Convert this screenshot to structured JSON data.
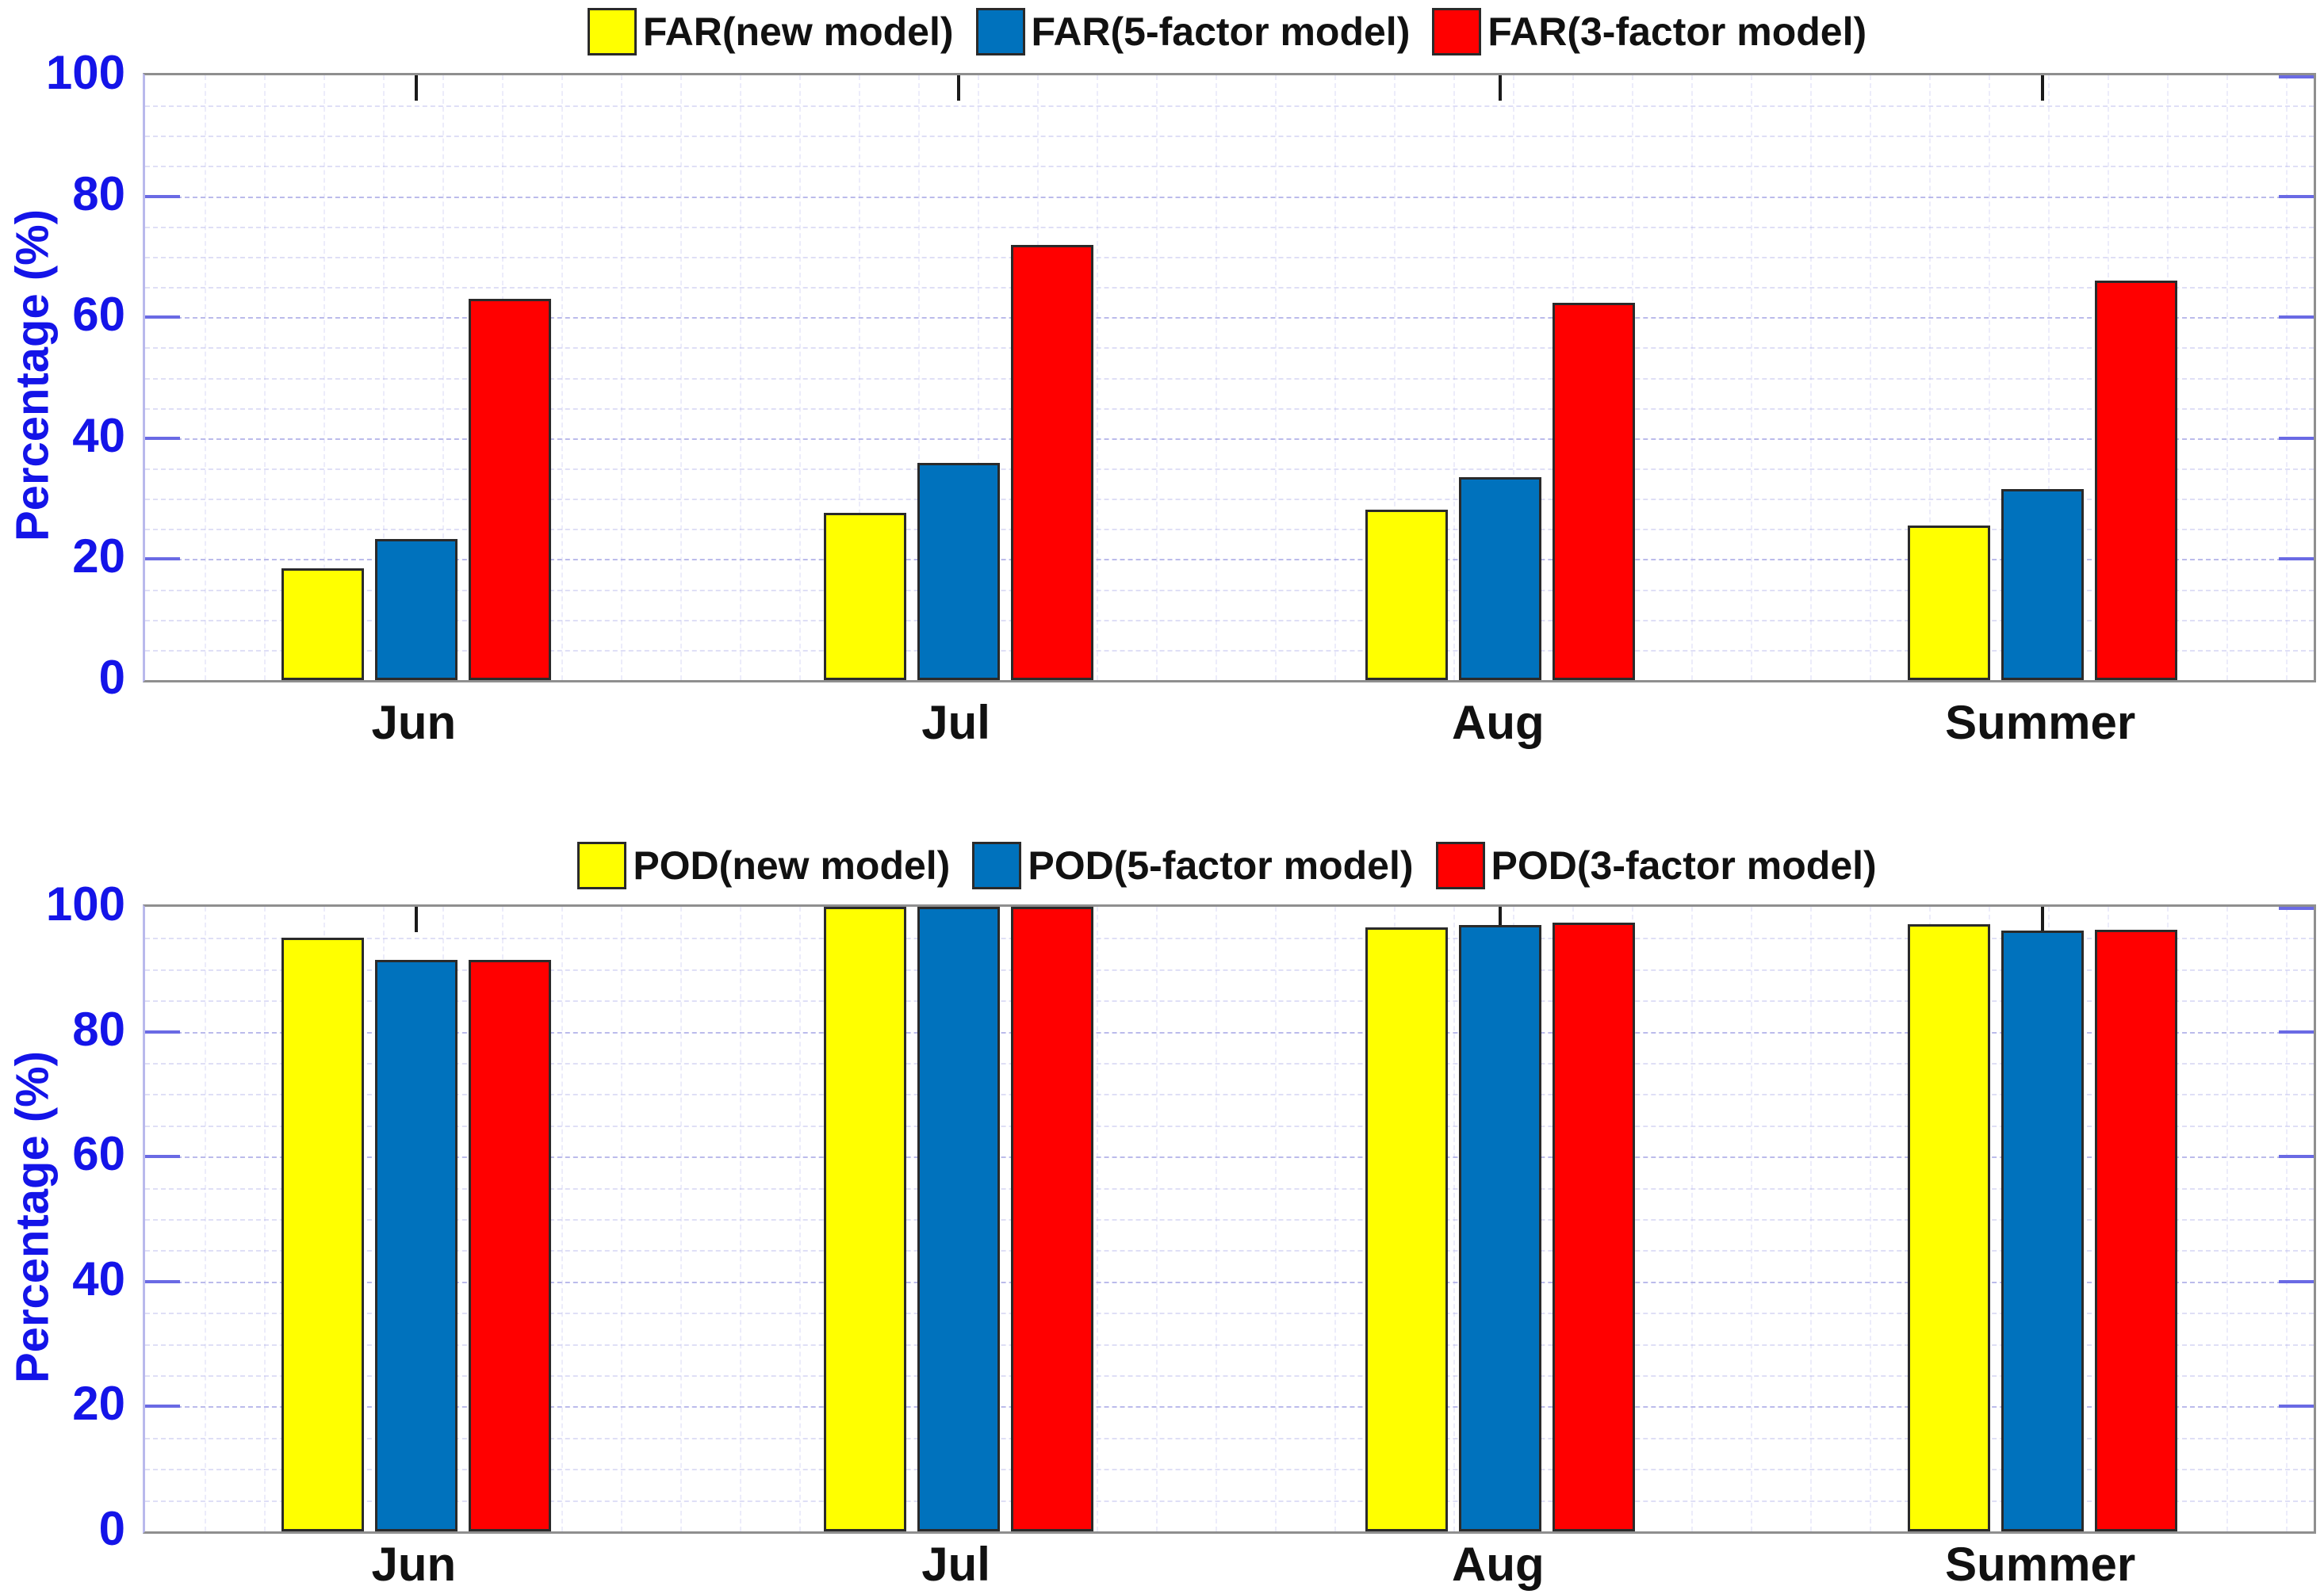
{
  "style": {
    "background": "#ffffff",
    "axis_text_color": "#1414e8",
    "category_text_color": "#111111",
    "legend_text_color": "#111111",
    "frame_color": "#8f8f8f",
    "grid_color": "#9e9ee4",
    "bar_edge_color": "#2a2a2a"
  },
  "chart_data": [
    {
      "type": "bar",
      "title": "",
      "ylabel": "Percentage (%)",
      "xlabel": "",
      "ylim": [
        0,
        100
      ],
      "yticks": [
        0,
        20,
        40,
        60,
        80,
        100
      ],
      "grid": true,
      "legend_position": "top-center",
      "categories": [
        "Jun",
        "Jul",
        "Aug",
        "Summer"
      ],
      "series": [
        {
          "name": "FAR(new model)",
          "color": "#FFFF00",
          "values": [
            18.5,
            27.6,
            28.2,
            25.6
          ]
        },
        {
          "name": "FAR(5-factor model)",
          "color": "#0072BD",
          "values": [
            23.3,
            35.9,
            33.6,
            31.6
          ]
        },
        {
          "name": "FAR(3-factor model)",
          "color": "#FF0000",
          "values": [
            63.0,
            72.0,
            62.4,
            66.0
          ]
        }
      ]
    },
    {
      "type": "bar",
      "title": "",
      "ylabel": "Percentage (%)",
      "xlabel": "",
      "ylim": [
        0,
        100
      ],
      "yticks": [
        0,
        20,
        40,
        60,
        80,
        100
      ],
      "grid": true,
      "legend_position": "top-center",
      "categories": [
        "Jun",
        "Jul",
        "Aug",
        "Summer"
      ],
      "series": [
        {
          "name": "POD(new model)",
          "color": "#FFFF00",
          "values": [
            95.0,
            100.0,
            96.7,
            97.2
          ]
        },
        {
          "name": "POD(5-factor model)",
          "color": "#0072BD",
          "values": [
            91.5,
            100.0,
            97.1,
            96.2
          ]
        },
        {
          "name": "POD(3-factor model)",
          "color": "#FF0000",
          "values": [
            91.5,
            100.0,
            97.5,
            96.3
          ]
        }
      ]
    }
  ]
}
